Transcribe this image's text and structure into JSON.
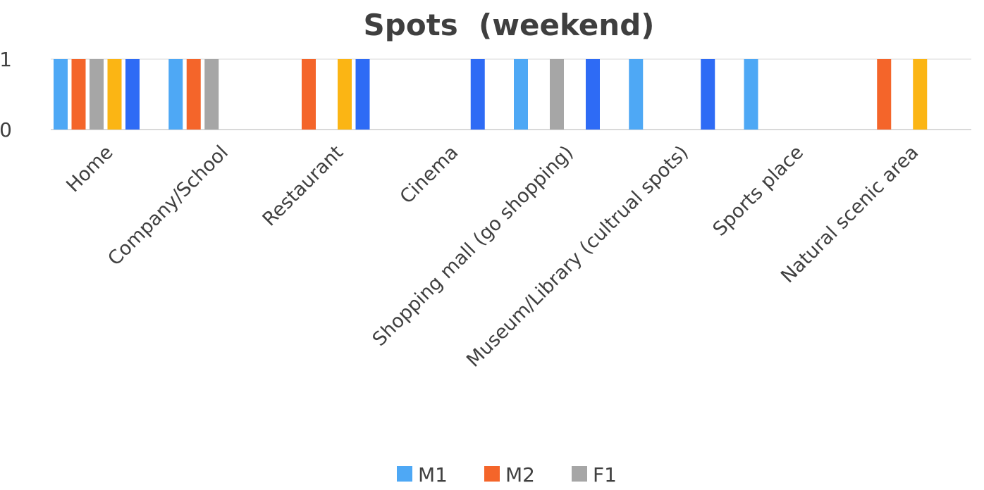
{
  "chart_data": {
    "type": "bar",
    "title": "Spots  (weekend)",
    "xlabel": "",
    "ylabel": "",
    "ylim": [
      0,
      1
    ],
    "yticks": [
      0,
      1
    ],
    "grid": true,
    "legend_position": "bottom",
    "categories": [
      "Home",
      "Company/School",
      "Restaurant",
      "Cinema",
      "Shopping mall (go shopping)",
      "Museum/Library (cultrual spots)",
      "Sports place",
      "Natural scenic area"
    ],
    "series": [
      {
        "name": "M1",
        "color": "#4ea8f5",
        "values": [
          1,
          1,
          0,
          0,
          1,
          1,
          1,
          0
        ]
      },
      {
        "name": "M2",
        "color": "#f4652a",
        "values": [
          1,
          1,
          1,
          0,
          0,
          0,
          0,
          1
        ]
      },
      {
        "name": "F1",
        "color": "#a6a6a6",
        "values": [
          1,
          1,
          0,
          0,
          1,
          0,
          0,
          0
        ]
      },
      {
        "name": "",
        "color": "#fbb514",
        "values": [
          1,
          0,
          1,
          0,
          0,
          0,
          0,
          1
        ]
      },
      {
        "name": "",
        "color": "#2e6bf5",
        "values": [
          1,
          0,
          1,
          1,
          1,
          1,
          0,
          0
        ]
      }
    ]
  }
}
